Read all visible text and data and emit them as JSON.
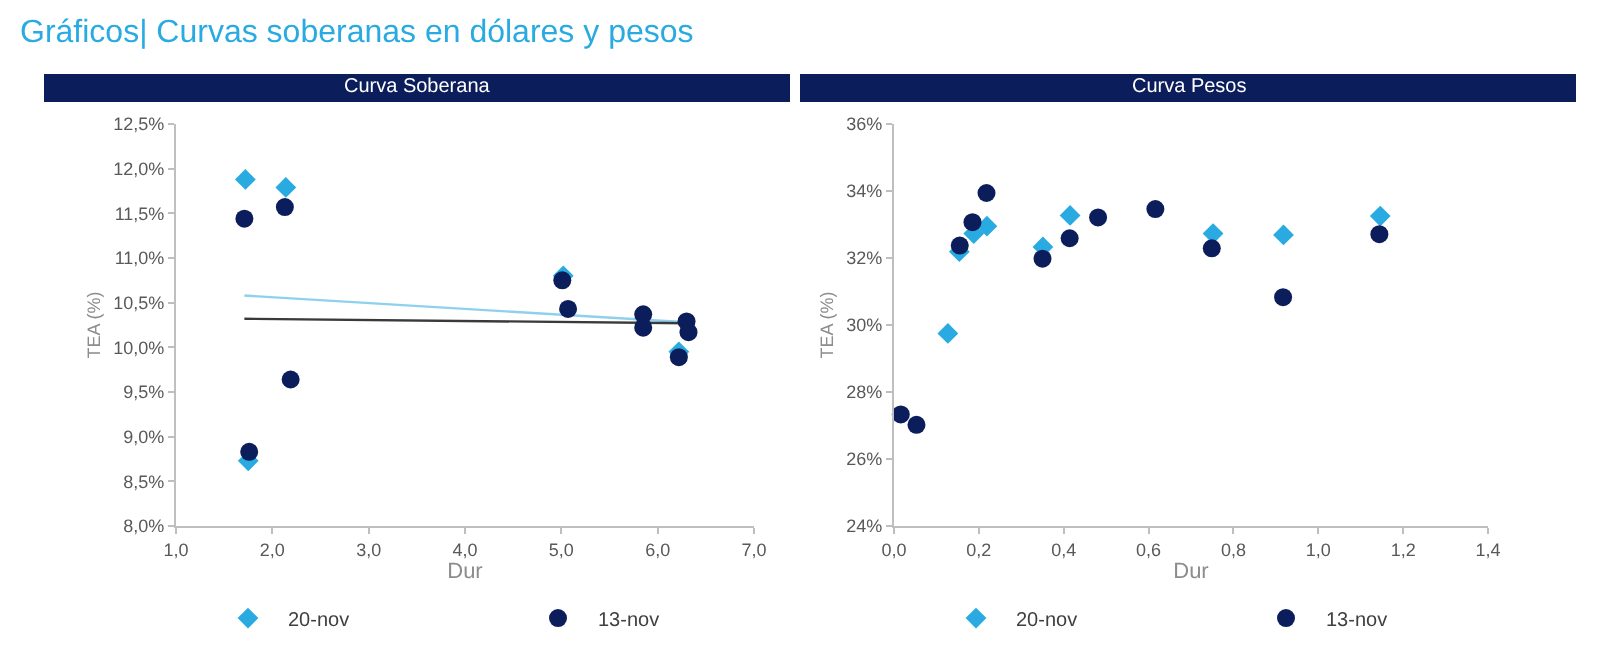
{
  "chart_data": [
    {
      "type": "scatter",
      "title": "Curva Soberana",
      "annotations": [
        "Gráficos| Curvas soberanas en dólares y pesos"
      ],
      "xlabel": "Dur",
      "ylabel": "TEA (%)",
      "legend": "bottom",
      "xlim": [
        1.0,
        7.0
      ],
      "xticks": [
        {
          "value": 1,
          "label": "1,0"
        },
        {
          "value": 2,
          "label": "2,0"
        },
        {
          "value": 3,
          "label": "3,0"
        },
        {
          "value": 4,
          "label": "4,0"
        },
        {
          "value": 5,
          "label": "5,0"
        },
        {
          "value": 6,
          "label": "6,0"
        },
        {
          "value": 7,
          "label": "7,0"
        }
      ],
      "ylim": [
        8.0,
        12.5
      ],
      "yticks": [
        {
          "value": 8,
          "label": "8,0%"
        },
        {
          "value": 8.5,
          "label": "8,5%"
        },
        {
          "value": 9,
          "label": "9,0%"
        },
        {
          "value": 9.5,
          "label": "9,5%"
        },
        {
          "value": 10,
          "label": "10,0%"
        },
        {
          "value": 10.5,
          "label": "10,5%"
        },
        {
          "value": 11,
          "label": "11,0%"
        },
        {
          "value": 11.5,
          "label": "11,5%"
        },
        {
          "value": 12,
          "label": "12,0%"
        },
        {
          "value": 12.5,
          "label": "12,5%"
        }
      ],
      "series": [
        {
          "type": "line",
          "color": "#8fd0ee",
          "x": [
            1.71,
            6.3
          ],
          "values": [
            10.58,
            10.28
          ]
        },
        {
          "type": "line",
          "color": "#3a3a3a",
          "x": [
            1.71,
            6.3
          ],
          "values": [
            10.32,
            10.27
          ]
        },
        {
          "name": "20-nov",
          "marker": "diamond",
          "color": "#29abe2",
          "x": [
            1.72,
            2.14,
            1.75,
            5.02,
            6.22
          ],
          "values": [
            11.88,
            11.79,
            8.73,
            10.8,
            9.95
          ]
        },
        {
          "name": "13-nov",
          "marker": "circle",
          "color": "#0b1e5b",
          "x": [
            1.71,
            2.13,
            1.76,
            2.19,
            5.01,
            5.07,
            5.85,
            5.85,
            6.22,
            6.3,
            6.32
          ],
          "values": [
            11.44,
            11.57,
            8.83,
            9.64,
            10.75,
            10.43,
            10.37,
            10.22,
            9.89,
            10.29,
            10.17
          ]
        }
      ]
    },
    {
      "type": "scatter",
      "title": "Curva Pesos",
      "xlabel": "Dur",
      "ylabel": "TEA (%)",
      "legend": "bottom",
      "xlim": [
        0,
        1.4
      ],
      "xticks": [
        {
          "value": 0,
          "label": "0,0"
        },
        {
          "value": 0.2,
          "label": "0,2"
        },
        {
          "value": 0.4,
          "label": "0,4"
        },
        {
          "value": 0.6,
          "label": "0,6"
        },
        {
          "value": 0.8,
          "label": "0,8"
        },
        {
          "value": 1.0,
          "label": "1,0"
        },
        {
          "value": 1.2,
          "label": "1,2"
        },
        {
          "value": 1.4,
          "label": "1,4"
        }
      ],
      "ylim": [
        24,
        36
      ],
      "yticks": [
        {
          "value": 24,
          "label": "24%"
        },
        {
          "value": 26,
          "label": "26%"
        },
        {
          "value": 28,
          "label": "28%"
        },
        {
          "value": 30,
          "label": "30%"
        },
        {
          "value": 32,
          "label": "32%"
        },
        {
          "value": 34,
          "label": "34%"
        },
        {
          "value": 36,
          "label": "36%"
        }
      ],
      "series": [
        {
          "name": "20-nov",
          "marker": "diamond",
          "color": "#29abe2",
          "x": [
            0.127,
            0.154,
            0.188,
            0.219,
            0.351,
            0.415,
            0.752,
            0.918,
            1.146
          ],
          "values": [
            29.75,
            32.19,
            32.73,
            32.95,
            32.33,
            33.27,
            32.73,
            32.69,
            33.25
          ]
        },
        {
          "name": "13-nov",
          "marker": "circle",
          "color": "#0b1e5b",
          "x": [
            0.016,
            0.053,
            0.155,
            0.185,
            0.218,
            0.35,
            0.414,
            0.481,
            0.616,
            0.749,
            0.917,
            1.144
          ],
          "values": [
            27.33,
            27.02,
            32.37,
            33.07,
            33.94,
            31.98,
            32.59,
            33.21,
            33.46,
            32.29,
            30.83,
            32.71
          ]
        }
      ]
    }
  ]
}
